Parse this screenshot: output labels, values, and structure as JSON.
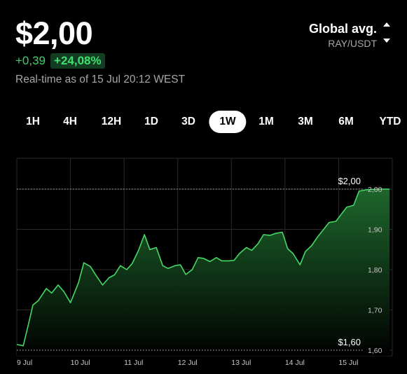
{
  "header": {
    "price": "$2,00",
    "change_abs": "+0,39",
    "change_pct": "+24,08%",
    "realtime": "Real-time as of 15 Jul 20:12 WEST"
  },
  "source": {
    "title": "Global avg.",
    "pair": "RAY/USDT",
    "icon": "sort-updown-icon"
  },
  "tabs": [
    {
      "label": "1H",
      "active": false
    },
    {
      "label": "4H",
      "active": false
    },
    {
      "label": "12H",
      "active": false
    },
    {
      "label": "1D",
      "active": false
    },
    {
      "label": "3D",
      "active": false
    },
    {
      "label": "1W",
      "active": true
    },
    {
      "label": "1M",
      "active": false
    },
    {
      "label": "3M",
      "active": false
    },
    {
      "label": "6M",
      "active": false
    },
    {
      "label": "YTD",
      "active": false
    }
  ],
  "chart_data": {
    "type": "area",
    "title": "",
    "xlabel": "",
    "ylabel": "",
    "x_ticks": [
      "9 Jul",
      "10 Jul",
      "11 Jul",
      "12 Jul",
      "13 Jul",
      "14 Jul",
      "15 Jul"
    ],
    "y_ticks": [
      "2,00",
      "1,90",
      "1,80",
      "1,70",
      "1,60"
    ],
    "y_tick_values": [
      2.0,
      1.9,
      1.8,
      1.7,
      1.6
    ],
    "ylim": [
      1.6,
      2.0
    ],
    "xlim": [
      0,
      7
    ],
    "grid": true,
    "reference_lines": [
      {
        "label": "$2,00",
        "value": 2.0
      },
      {
        "label": "$1,60",
        "value": 1.6
      }
    ],
    "colors": {
      "line": "#46d866",
      "fill_top": "#1f6b2e",
      "fill_bottom": "#000000",
      "grid": "#2a2a2a"
    },
    "series": [
      {
        "x": [
          0.0,
          0.12,
          0.2,
          0.3,
          0.4,
          0.55,
          0.65,
          0.77,
          0.88,
          1.0,
          1.15,
          1.25,
          1.37,
          1.48,
          1.6,
          1.72,
          1.82,
          1.93,
          2.05,
          2.15,
          2.27,
          2.38,
          2.48,
          2.6,
          2.72,
          2.82,
          2.95,
          3.05,
          3.15,
          3.27,
          3.38,
          3.48,
          3.6,
          3.72,
          3.82,
          3.95,
          4.05,
          4.15,
          4.28,
          4.38,
          4.5,
          4.6,
          4.72,
          4.82,
          4.95,
          5.05,
          5.15,
          5.28,
          5.38,
          5.5,
          5.6,
          5.72,
          5.82,
          5.95,
          6.05,
          6.15,
          6.28,
          6.38,
          6.5,
          6.6,
          6.72,
          6.82,
          6.95
        ],
        "y": [
          1.614,
          1.611,
          1.655,
          1.712,
          1.723,
          1.753,
          1.742,
          1.762,
          1.745,
          1.718,
          1.768,
          1.817,
          1.808,
          1.785,
          1.762,
          1.78,
          1.787,
          1.81,
          1.8,
          1.815,
          1.848,
          1.887,
          1.85,
          1.855,
          1.81,
          1.803,
          1.81,
          1.812,
          1.788,
          1.8,
          1.83,
          1.828,
          1.82,
          1.83,
          1.822,
          1.822,
          1.823,
          1.84,
          1.855,
          1.848,
          1.865,
          1.887,
          1.885,
          1.89,
          1.893,
          1.852,
          1.84,
          1.812,
          1.845,
          1.86,
          1.88,
          1.9,
          1.917,
          1.92,
          1.938,
          1.955,
          1.96,
          1.995,
          1.998,
          1.999,
          2.0,
          2.0,
          2.0
        ]
      }
    ]
  }
}
